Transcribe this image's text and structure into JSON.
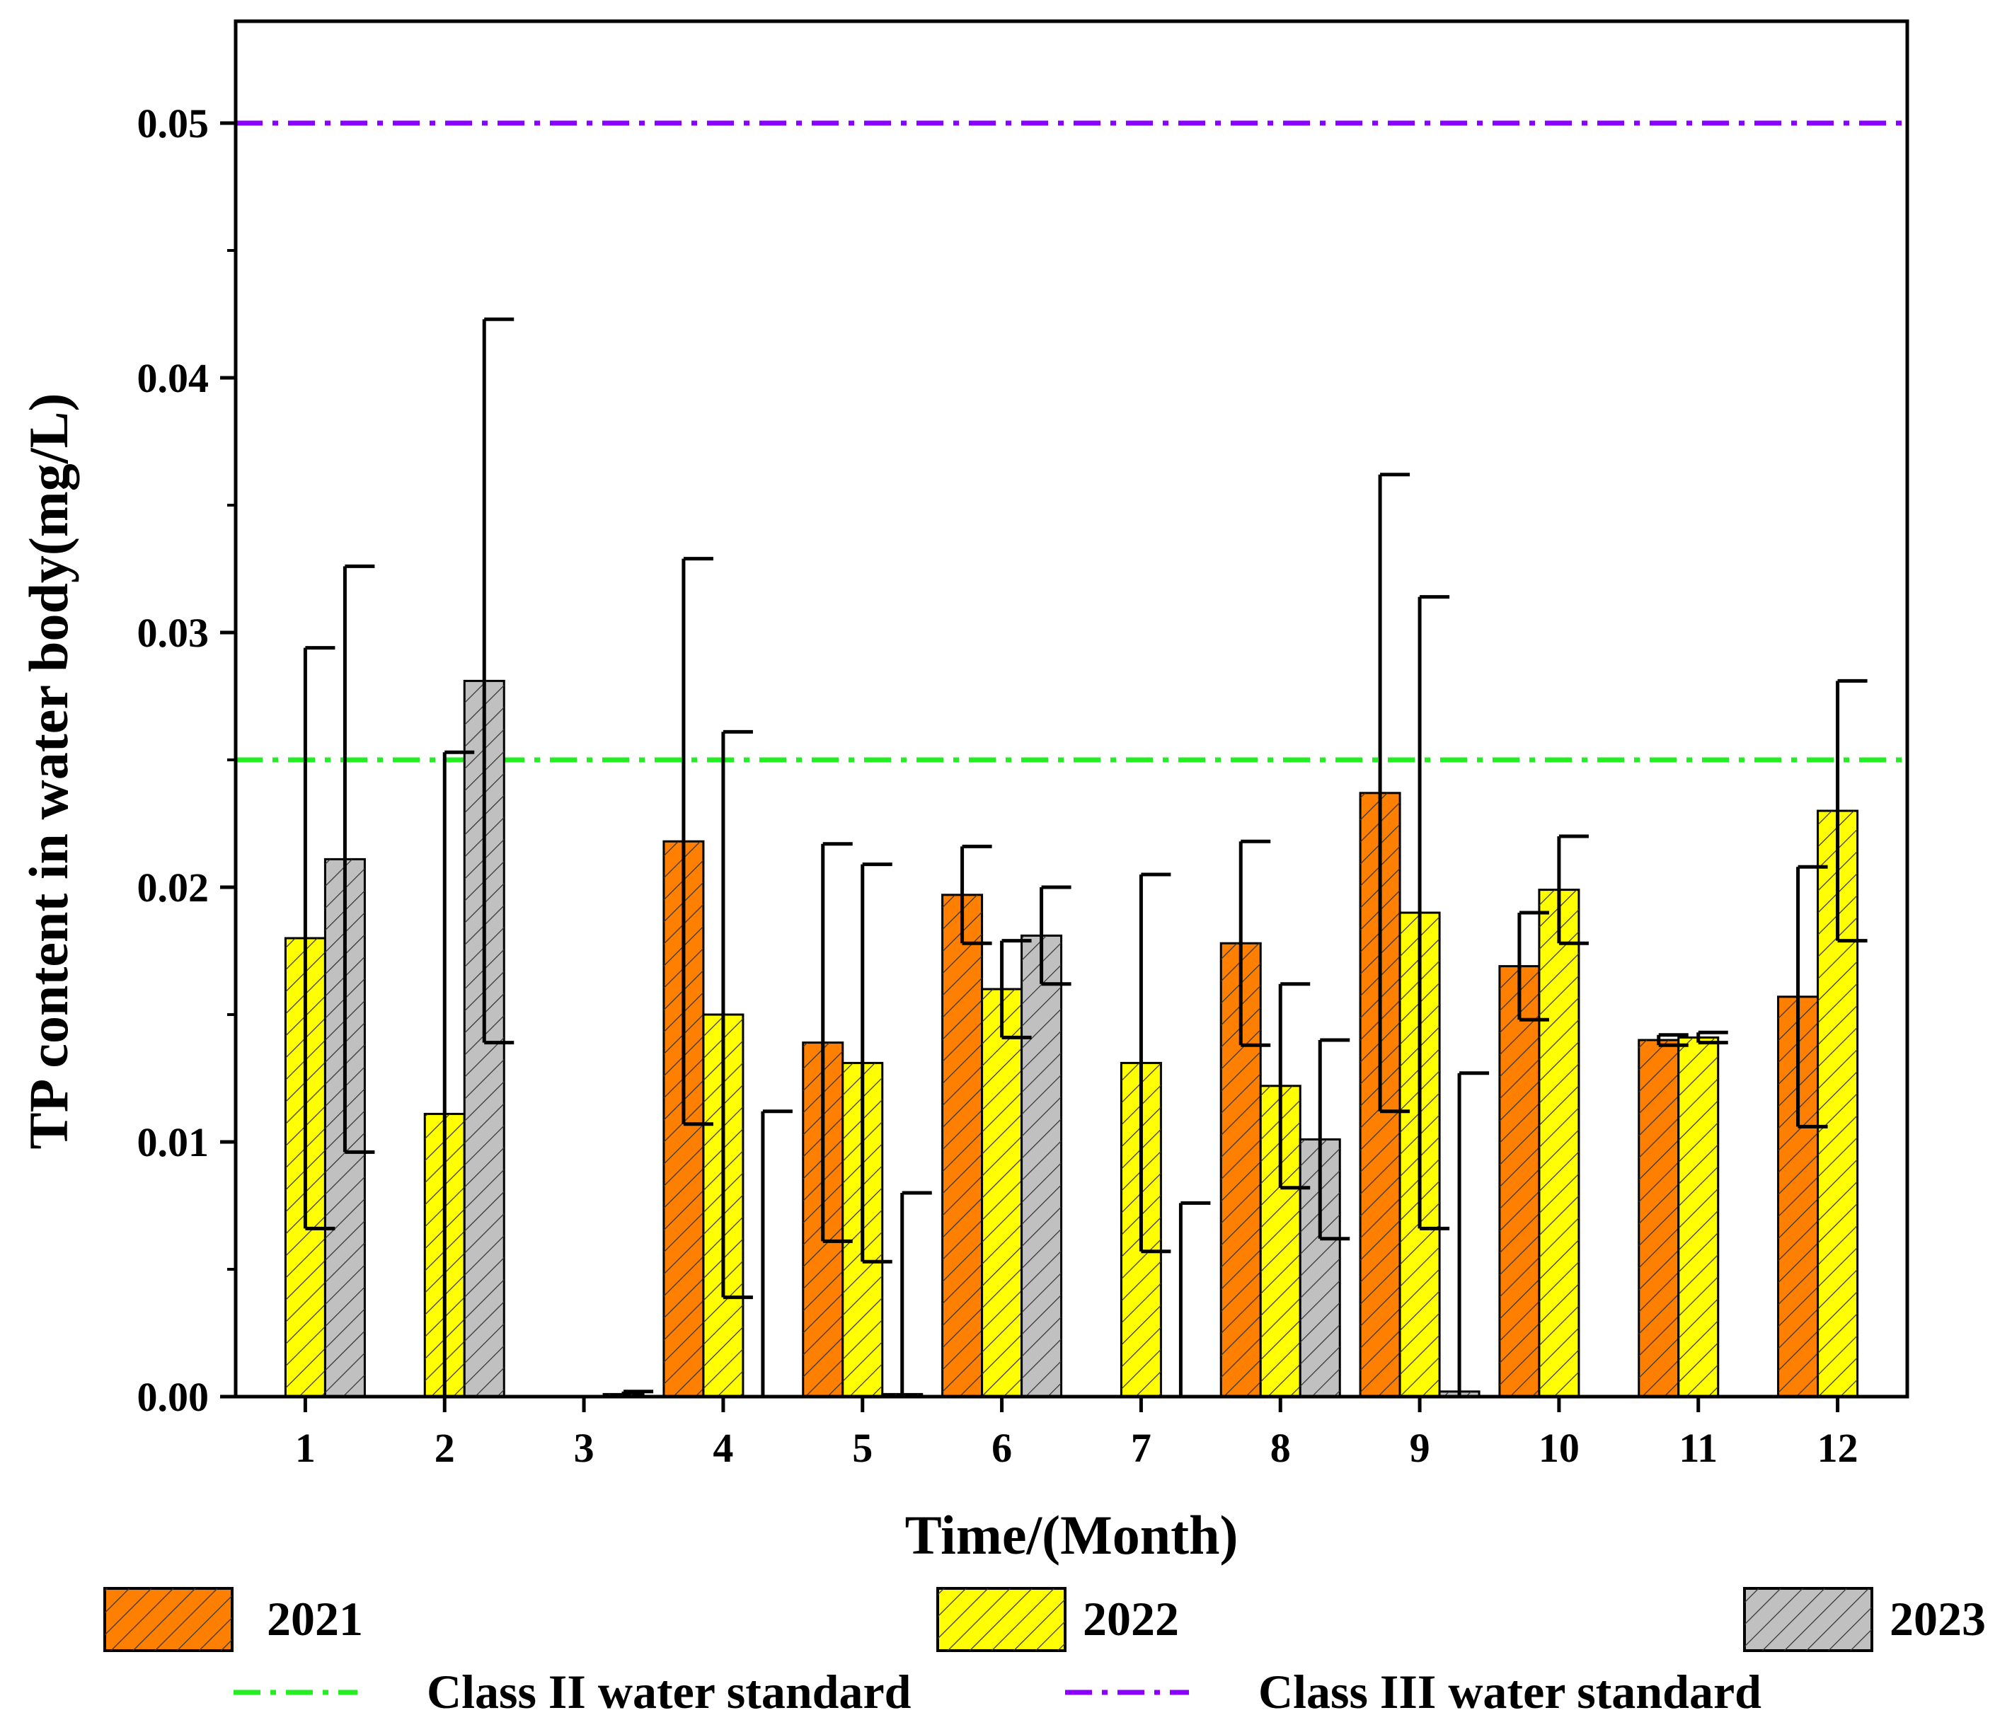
{
  "chart_data": {
    "type": "bar",
    "title": "",
    "xlabel": "Time/(Month)",
    "ylabel": "TP content in water body(mg/L)",
    "ylim": [
      0,
      0.054
    ],
    "yticks": [
      "0.00",
      "0.01",
      "0.02",
      "0.03",
      "0.04",
      "0.05"
    ],
    "categories": [
      "1",
      "2",
      "3",
      "4",
      "5",
      "6",
      "7",
      "8",
      "9",
      "10",
      "11",
      "12"
    ],
    "series": [
      {
        "name": "2021",
        "color": "#ff7f00",
        "values": [
          null,
          null,
          0.0,
          0.0218,
          0.0139,
          0.0197,
          null,
          0.0178,
          0.0237,
          0.0169,
          0.014,
          0.0157
        ],
        "errors": [
          null,
          null,
          0.0,
          0.0111,
          0.0078,
          0.0019,
          null,
          0.004,
          0.0125,
          0.0021,
          0.0002,
          0.0051
        ]
      },
      {
        "name": "2022",
        "color": "#ffff00",
        "values": [
          0.018,
          0.0111,
          0.0,
          0.015,
          0.0131,
          0.016,
          0.0131,
          0.0122,
          0.019,
          0.0199,
          0.0141,
          0.023
        ],
        "errors": [
          0.0114,
          0.0142,
          0.0,
          0.0111,
          0.0078,
          0.0019,
          0.0074,
          0.004,
          0.0124,
          0.0021,
          0.0002,
          0.0051
        ]
      },
      {
        "name": "2023",
        "color": "#c0c0c0",
        "values": [
          0.0211,
          0.0281,
          0.0001,
          0.0,
          0.0001,
          0.0181,
          0.0,
          0.0101,
          0.0002,
          null,
          null,
          null
        ],
        "errors": [
          0.0115,
          0.0142,
          0.0001,
          0.0112,
          0.0079,
          0.0019,
          0.0076,
          0.0039,
          0.0125,
          null,
          null,
          null
        ]
      }
    ],
    "reference_lines": [
      {
        "name": "Class II water standard",
        "value": 0.025,
        "color": "#22ee22"
      },
      {
        "name": "Class III water standard",
        "value": 0.05,
        "color": "#8800ff"
      }
    ],
    "legend_position": "bottom"
  }
}
